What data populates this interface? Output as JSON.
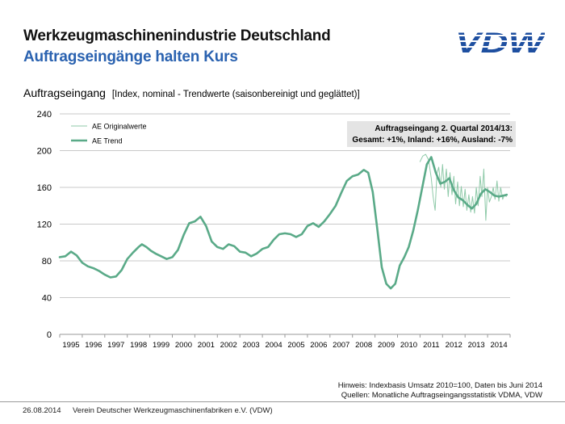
{
  "header": {
    "title": "Werkzeugmaschinenindustrie Deutschland",
    "subtitle": "Auftragseingänge halten Kurs",
    "logo_text": "VDW"
  },
  "chart_heading": {
    "main": "Auftragseingang",
    "sub": "[Index, nominal - Trendwerte (saisonbereinigt und geglättet)]"
  },
  "infobox": {
    "line1": "Auftragseingang  2. Quartal 2014/13:",
    "line2": "Gesamt: +1%, Inland: +16%, Ausland: -7%"
  },
  "notes": {
    "hint": "Hinweis: Indexbasis Umsatz 2010=100, Daten bis Juni 2014",
    "source": "Quellen: Monatliche Auftragseingangsstatistik VDMA, VDW"
  },
  "footer": {
    "date": "26.08.2014",
    "org": "Verein Deutscher Werkzeugmaschinenfabriken e.V. (VDW)"
  },
  "colors": {
    "trend": "#5aaa88",
    "original": "#8fcaa9",
    "grid": "#c9c9c9",
    "title_blue": "#2a62b0",
    "logo_blue": "#1e4fa0"
  },
  "chart_data": {
    "type": "line",
    "ylim": [
      0,
      240
    ],
    "yticks": [
      0,
      40,
      80,
      120,
      160,
      200,
      240
    ],
    "xlim": [
      1994.5,
      2014.5
    ],
    "xtick_labels": [
      "1995",
      "1996",
      "1997",
      "1998",
      "1999",
      "2000",
      "2001",
      "2002",
      "2003",
      "2004",
      "2005",
      "2006",
      "2007",
      "2008",
      "2009",
      "2010",
      "2011",
      "2012",
      "2013",
      "2014"
    ],
    "legend": {
      "placement": "top-left"
    },
    "series": [
      {
        "name": "AE Originalwerte",
        "style": "thin",
        "points": [
          [
            2010.5,
            188
          ],
          [
            2010.62,
            194
          ],
          [
            2010.75,
            196
          ],
          [
            2010.88,
            190
          ],
          [
            2011.0,
            170
          ],
          [
            2011.08,
            150
          ],
          [
            2011.17,
            135
          ],
          [
            2011.25,
            175
          ],
          [
            2011.33,
            182
          ],
          [
            2011.42,
            160
          ],
          [
            2011.5,
            185
          ],
          [
            2011.58,
            158
          ],
          [
            2011.67,
            180
          ],
          [
            2011.75,
            150
          ],
          [
            2011.83,
            176
          ],
          [
            2011.92,
            152
          ],
          [
            2012.0,
            172
          ],
          [
            2012.08,
            142
          ],
          [
            2012.17,
            166
          ],
          [
            2012.25,
            140
          ],
          [
            2012.33,
            161
          ],
          [
            2012.42,
            139
          ],
          [
            2012.5,
            158
          ],
          [
            2012.58,
            135
          ],
          [
            2012.67,
            152
          ],
          [
            2012.75,
            133
          ],
          [
            2012.83,
            150
          ],
          [
            2012.92,
            132
          ],
          [
            2013.0,
            160
          ],
          [
            2013.08,
            140
          ],
          [
            2013.17,
            172
          ],
          [
            2013.25,
            150
          ],
          [
            2013.33,
            180
          ],
          [
            2013.42,
            124
          ],
          [
            2013.5,
            160
          ],
          [
            2013.58,
            144
          ],
          [
            2013.67,
            150
          ],
          [
            2013.75,
            160
          ],
          [
            2013.83,
            147
          ],
          [
            2013.92,
            167
          ],
          [
            2014.0,
            145
          ],
          [
            2014.08,
            160
          ],
          [
            2014.17,
            147
          ],
          [
            2014.25,
            152
          ],
          [
            2014.33,
            150
          ]
        ]
      },
      {
        "name": "AE Trend",
        "style": "thick",
        "points": [
          [
            1994.5,
            84
          ],
          [
            1994.75,
            85
          ],
          [
            1995.0,
            90
          ],
          [
            1995.25,
            86
          ],
          [
            1995.5,
            78
          ],
          [
            1995.75,
            74
          ],
          [
            1996.0,
            72
          ],
          [
            1996.25,
            69
          ],
          [
            1996.5,
            65
          ],
          [
            1996.75,
            62
          ],
          [
            1997.0,
            63
          ],
          [
            1997.25,
            70
          ],
          [
            1997.5,
            82
          ],
          [
            1997.75,
            89
          ],
          [
            1998.0,
            95
          ],
          [
            1998.15,
            98
          ],
          [
            1998.35,
            95
          ],
          [
            1998.55,
            91
          ],
          [
            1998.75,
            88
          ],
          [
            1999.0,
            85
          ],
          [
            1999.25,
            82
          ],
          [
            1999.5,
            84
          ],
          [
            1999.75,
            92
          ],
          [
            2000.0,
            108
          ],
          [
            2000.25,
            121
          ],
          [
            2000.5,
            123
          ],
          [
            2000.75,
            128
          ],
          [
            2001.0,
            118
          ],
          [
            2001.25,
            101
          ],
          [
            2001.5,
            95
          ],
          [
            2001.75,
            93
          ],
          [
            2002.0,
            98
          ],
          [
            2002.25,
            96
          ],
          [
            2002.5,
            90
          ],
          [
            2002.75,
            89
          ],
          [
            2003.0,
            85
          ],
          [
            2003.25,
            88
          ],
          [
            2003.5,
            93
          ],
          [
            2003.75,
            95
          ],
          [
            2004.0,
            103
          ],
          [
            2004.25,
            109
          ],
          [
            2004.5,
            110
          ],
          [
            2004.75,
            109
          ],
          [
            2005.0,
            106
          ],
          [
            2005.25,
            109
          ],
          [
            2005.5,
            118
          ],
          [
            2005.75,
            121
          ],
          [
            2006.0,
            117
          ],
          [
            2006.25,
            123
          ],
          [
            2006.5,
            131
          ],
          [
            2006.75,
            140
          ],
          [
            2007.0,
            154
          ],
          [
            2007.25,
            167
          ],
          [
            2007.5,
            172
          ],
          [
            2007.75,
            174
          ],
          [
            2008.0,
            179
          ],
          [
            2008.2,
            176
          ],
          [
            2008.4,
            155
          ],
          [
            2008.6,
            115
          ],
          [
            2008.8,
            73
          ],
          [
            2009.0,
            55
          ],
          [
            2009.2,
            50
          ],
          [
            2009.4,
            55
          ],
          [
            2009.6,
            75
          ],
          [
            2009.8,
            84
          ],
          [
            2010.0,
            95
          ],
          [
            2010.2,
            113
          ],
          [
            2010.4,
            135
          ],
          [
            2010.6,
            160
          ],
          [
            2010.8,
            185
          ],
          [
            2011.0,
            193
          ],
          [
            2011.2,
            176
          ],
          [
            2011.4,
            164
          ],
          [
            2011.6,
            166
          ],
          [
            2011.8,
            170
          ],
          [
            2012.0,
            157
          ],
          [
            2012.2,
            149
          ],
          [
            2012.4,
            146
          ],
          [
            2012.6,
            141
          ],
          [
            2012.8,
            137
          ],
          [
            2013.0,
            142
          ],
          [
            2013.2,
            153
          ],
          [
            2013.4,
            158
          ],
          [
            2013.6,
            155
          ],
          [
            2013.8,
            151
          ],
          [
            2014.0,
            150
          ],
          [
            2014.2,
            151
          ],
          [
            2014.35,
            152
          ]
        ]
      }
    ]
  }
}
